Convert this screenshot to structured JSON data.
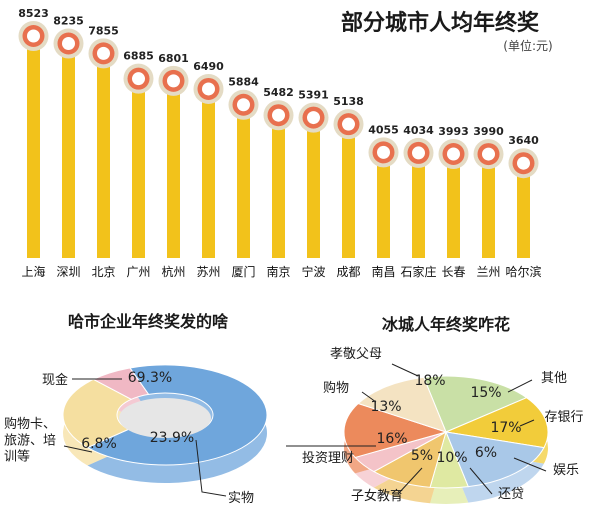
{
  "charts": [
    {
      "type": "bar",
      "title": "部分城市人均年终奖",
      "unit": "(单位:元)",
      "categories": [
        "上海",
        "深圳",
        "北京",
        "广州",
        "杭州",
        "苏州",
        "厦门",
        "南京",
        "宁波",
        "成都",
        "南昌",
        "石家庄",
        "长春",
        "兰州",
        "哈尔滨"
      ],
      "values": [
        8523,
        8235,
        7855,
        6885,
        6801,
        6490,
        5884,
        5482,
        5391,
        5138,
        4055,
        4034,
        3993,
        3990,
        3640
      ],
      "ylim": [
        0,
        9000
      ],
      "grid": false,
      "bar_color": "#f2c21b",
      "marker_color": "#e8704e"
    },
    {
      "type": "pie",
      "title": "哈市企业年终奖发的啥",
      "style": "donut",
      "slices": [
        {
          "label": "现金",
          "value": 69.3,
          "display": "69.3%",
          "color": "#6fa6dc"
        },
        {
          "label": "实物",
          "value": 23.9,
          "display": "23.9%",
          "color": "#f5dfa0"
        },
        {
          "label": "购物卡、\n旅游、培\n训等",
          "value": 6.8,
          "display": "6.8%",
          "color": "#f0b8c4"
        }
      ]
    },
    {
      "type": "pie",
      "title": "冰城人年终奖咋花",
      "slices": [
        {
          "label": "孝敬父母",
          "value": 18,
          "display": "18%",
          "color": "#c9e0a6"
        },
        {
          "label": "其他",
          "value": 15,
          "display": "15%",
          "color": "#f2cc3a"
        },
        {
          "label": "存银行",
          "value": 17,
          "display": "17%",
          "color": "#a9c8e8"
        },
        {
          "label": "娱乐",
          "value": 6,
          "display": "6%",
          "color": "#dfe9a2"
        },
        {
          "label": "还贷",
          "value": 10,
          "display": "10%",
          "color": "#f0c66e"
        },
        {
          "label": "子女教育",
          "value": 5,
          "display": "5%",
          "color": "#f4c3c8"
        },
        {
          "label": "投资理财",
          "value": 16,
          "display": "16%",
          "color": "#ec8a5c"
        },
        {
          "label": "购物",
          "value": 13,
          "display": "13%",
          "color": "#f4e3c2"
        }
      ]
    }
  ]
}
